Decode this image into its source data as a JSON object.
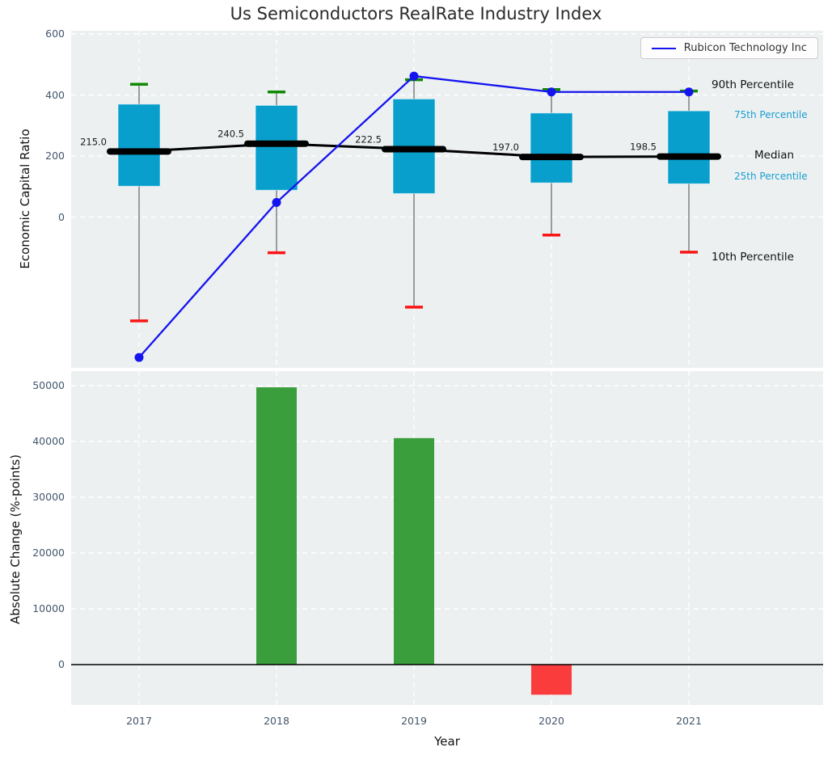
{
  "title": "Us Semiconductors RealRate Industry Index",
  "legend": {
    "label": "Rubicon Technology Inc"
  },
  "annotations": {
    "p90": "90th Percentile",
    "p75": "75th Percentile",
    "median": "Median",
    "p25": "25th Percentile",
    "p10": "10th Percentile"
  },
  "colors": {
    "box": "#089fcc",
    "p90_cap": "#0f8a04",
    "p10_cap": "#fa1616",
    "whisker": "#777777",
    "median_line": "#000000",
    "company_line": "#1414ee",
    "bar_positive": "#3a9e3c",
    "bar_negative": "#fb3c3c",
    "annotation_cyan": "#189fd0",
    "plot_background": "#edf0f1",
    "tick_label": "#42566b",
    "gridline": "#ffffff"
  },
  "chart_data": [
    {
      "type": "box",
      "title": "Us Semiconductors RealRate Industry Index",
      "ylabel": "Economic Capital Ratio",
      "categories": [
        "2017",
        "2018",
        "2019",
        "2020",
        "2021"
      ],
      "yticks": [
        600,
        400,
        200,
        0
      ],
      "ylim": [
        -500,
        613
      ],
      "grid": true,
      "legend_position": "upper right",
      "series": {
        "p90": [
          435,
          410,
          450,
          418,
          413
        ],
        "p75": [
          370,
          366,
          387,
          341,
          348
        ],
        "median": [
          215.0,
          240.5,
          222.5,
          197.0,
          198.5
        ],
        "p25": [
          101,
          88,
          77,
          112,
          109
        ],
        "p10": [
          -340,
          -117,
          -295,
          -59,
          -115
        ]
      },
      "median_labels": [
        "215.0",
        "240.5",
        "222.5",
        "197.0",
        "198.5"
      ],
      "company_line": {
        "name": "Rubicon Technology Inc",
        "values": [
          -460,
          48,
          462,
          410,
          410
        ]
      }
    },
    {
      "type": "bar",
      "ylabel": "Absolute Change (%-points)",
      "xlabel": "Year",
      "categories": [
        "2017",
        "2018",
        "2019",
        "2020",
        "2021"
      ],
      "values": [
        null,
        49700,
        40600,
        -5400,
        null
      ],
      "yticks": [
        50000,
        40000,
        30000,
        20000,
        10000,
        0
      ],
      "ylim": [
        -7250,
        52600
      ],
      "grid": true
    }
  ]
}
